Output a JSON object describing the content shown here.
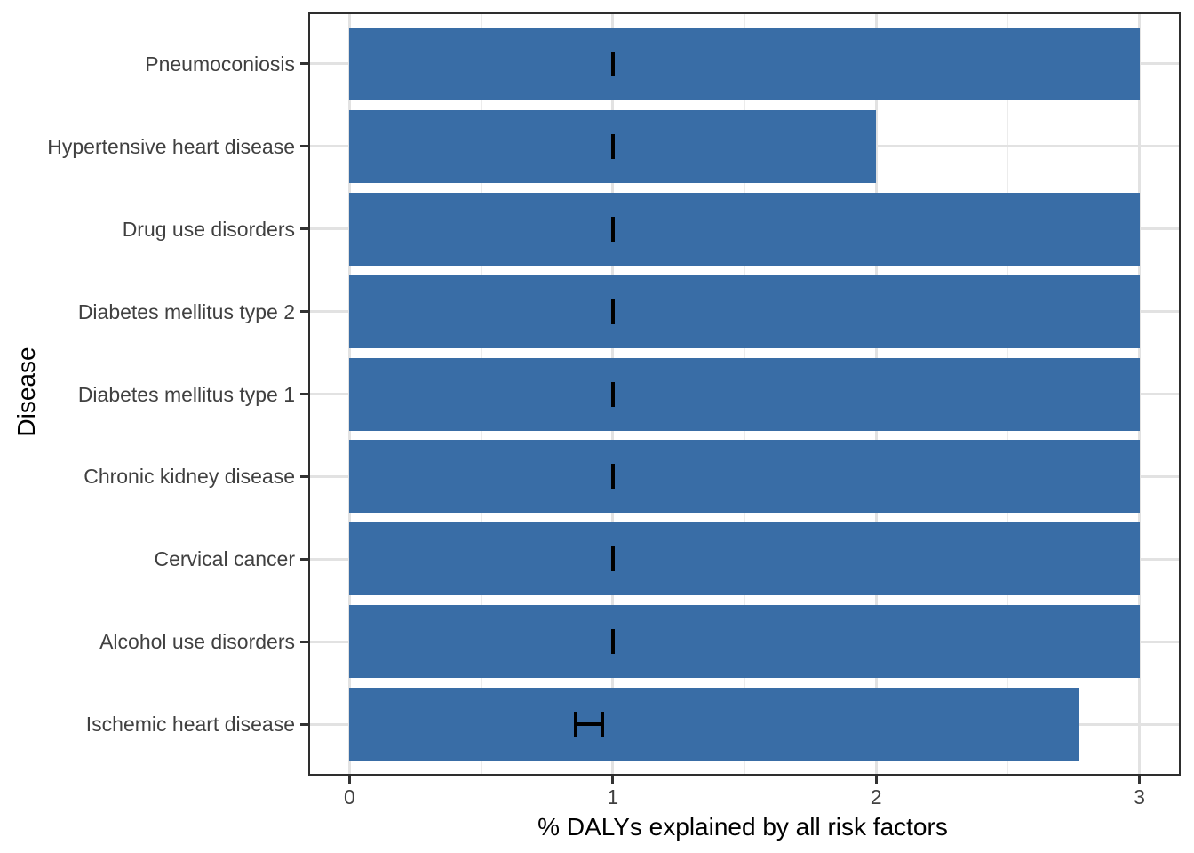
{
  "chart_data": {
    "type": "bar",
    "orientation": "horizontal",
    "title": "",
    "xlabel": "% DALYs explained by all risk factors",
    "ylabel": "Disease",
    "categories": [
      "Pneumoconiosis",
      "Hypertensive heart disease",
      "Drug use disorders",
      "Diabetes mellitus type 2",
      "Diabetes mellitus type 1",
      "Chronic kidney disease",
      "Cervical cancer",
      "Alcohol use disorders",
      "Ischemic heart disease"
    ],
    "values": [
      3.0,
      2.0,
      3.0,
      3.0,
      3.0,
      3.0,
      3.0,
      3.0,
      2.77
    ],
    "error_bars": [
      {
        "low": 1.0,
        "high": 1.0
      },
      {
        "low": 1.0,
        "high": 1.0
      },
      {
        "low": 1.0,
        "high": 1.0
      },
      {
        "low": 1.0,
        "high": 1.0
      },
      {
        "low": 1.0,
        "high": 1.0
      },
      {
        "low": 1.0,
        "high": 1.0
      },
      {
        "low": 1.0,
        "high": 1.0
      },
      {
        "low": 1.0,
        "high": 1.0
      },
      {
        "low": 0.86,
        "high": 0.96
      }
    ],
    "x_ticks": [
      0,
      1,
      2,
      3
    ],
    "x_minor_gridlines": [
      0.5,
      1.5,
      2.5
    ],
    "xlim": [
      -0.15,
      3.15
    ],
    "grid": true,
    "legend": "none",
    "colors": {
      "bar": "#396da6",
      "error_bar": "#000000",
      "grid_major": "#e2e2e2",
      "grid_minor": "#ececec",
      "panel_border": "#2e2e2e",
      "tick_mark": "#333333",
      "tick_label": "#404040",
      "axis_title": "#000000",
      "background": "#ffffff"
    }
  }
}
